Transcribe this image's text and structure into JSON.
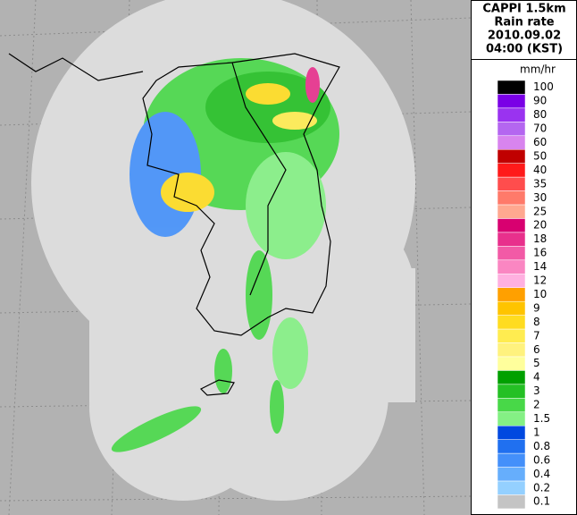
{
  "header": {
    "title_lines": [
      "CAPPI 1.5km",
      "Rain rate",
      "2010.09.02",
      "04:00 (KST)"
    ]
  },
  "legend": {
    "unit": "mm/hr",
    "items": [
      {
        "label": "100",
        "color": "#000000"
      },
      {
        "label": "90",
        "color": "#7a00e6"
      },
      {
        "label": "80",
        "color": "#9a33f0"
      },
      {
        "label": "70",
        "color": "#b466f0"
      },
      {
        "label": "60",
        "color": "#d884ee"
      },
      {
        "label": "50",
        "color": "#c00000"
      },
      {
        "label": "40",
        "color": "#ff1a1a"
      },
      {
        "label": "35",
        "color": "#ff4d4d"
      },
      {
        "label": "30",
        "color": "#ff7a6a"
      },
      {
        "label": "25",
        "color": "#ffa890"
      },
      {
        "label": "20",
        "color": "#d80070"
      },
      {
        "label": "18",
        "color": "#e8308c"
      },
      {
        "label": "16",
        "color": "#f25aa6"
      },
      {
        "label": "14",
        "color": "#fa86c2"
      },
      {
        "label": "12",
        "color": "#ffb0e0"
      },
      {
        "label": "10",
        "color": "#ffa000"
      },
      {
        "label": "9",
        "color": "#ffc400"
      },
      {
        "label": "8",
        "color": "#ffdc20"
      },
      {
        "label": "7",
        "color": "#ffec50"
      },
      {
        "label": "6",
        "color": "#fff27e"
      },
      {
        "label": "5",
        "color": "#ffff9c"
      },
      {
        "label": "4",
        "color": "#00a000"
      },
      {
        "label": "3",
        "color": "#24c024"
      },
      {
        "label": "2",
        "color": "#48d848"
      },
      {
        "label": "1.5",
        "color": "#84f084"
      },
      {
        "label": "1",
        "color": "#0048e0"
      },
      {
        "label": "0.8",
        "color": "#2070f0"
      },
      {
        "label": "0.6",
        "color": "#4490fa"
      },
      {
        "label": "0.4",
        "color": "#66aefc"
      },
      {
        "label": "0.2",
        "color": "#94d0ff"
      },
      {
        "label": "0.1",
        "color": "#c4c4c4"
      }
    ]
  }
}
